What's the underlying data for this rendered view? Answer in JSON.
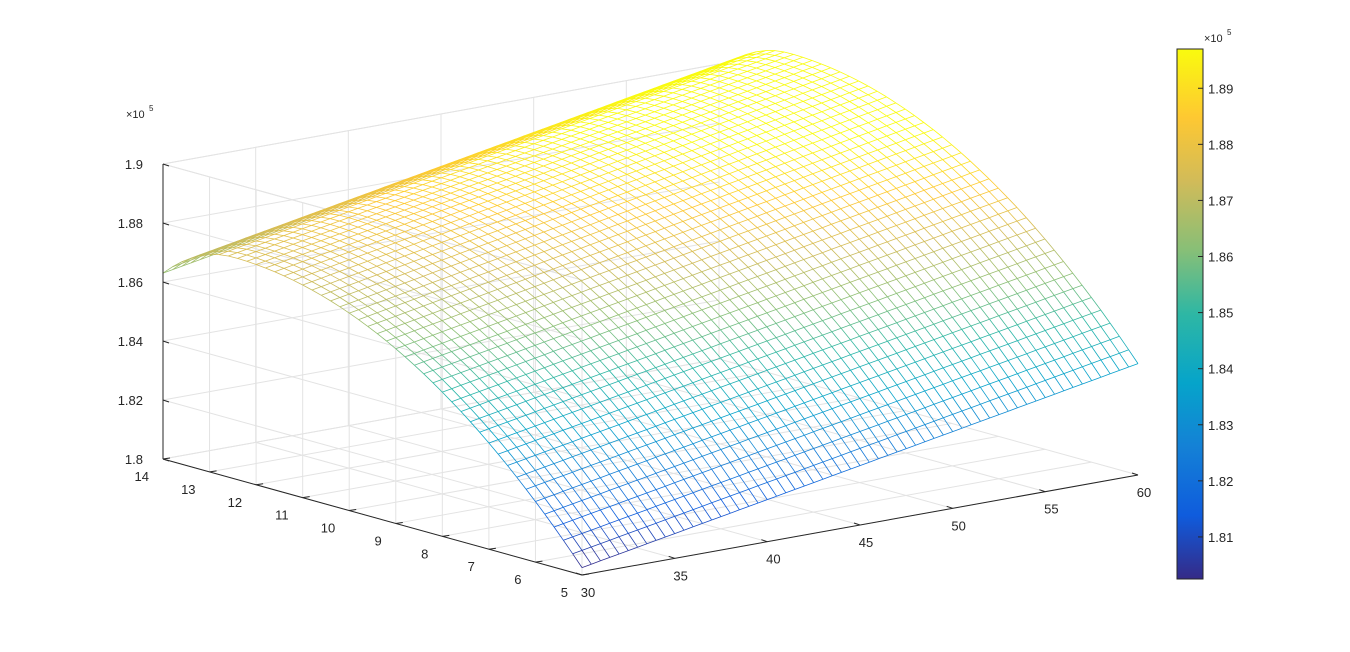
{
  "chart_data": {
    "type": "surface-mesh",
    "title": "",
    "xlabel": "",
    "ylabel": "",
    "zlabel": "",
    "x_range": [
      30,
      60
    ],
    "y_range": [
      5,
      14
    ],
    "z_range": [
      180000,
      190000
    ],
    "x_ticks": [
      "30",
      "35",
      "40",
      "45",
      "50",
      "55",
      "60"
    ],
    "y_ticks": [
      "5",
      "6",
      "7",
      "8",
      "9",
      "10",
      "11",
      "12",
      "13",
      "14"
    ],
    "z_ticks": [
      "1.8",
      "1.82",
      "1.84",
      "1.86",
      "1.88",
      "1.9"
    ],
    "z_exponent_label": "×10",
    "z_exponent_power": "5",
    "colorbar": {
      "ticks": [
        "1.81",
        "1.82",
        "1.83",
        "1.84",
        "1.85",
        "1.86",
        "1.87",
        "1.88",
        "1.89"
      ],
      "tick_values": [
        181000,
        182000,
        183000,
        184000,
        185000,
        186000,
        187000,
        188000,
        189000
      ],
      "range": [
        180250,
        189700
      ],
      "exponent_label": "×10",
      "exponent_power": "5",
      "colormap": "parula"
    },
    "surface": {
      "corner_values": {
        "x30_y5": 180250,
        "x60_y5": 183900,
        "x30_y14": 186300,
        "x60_y14": 189700
      },
      "ridge_y": 12.5,
      "ridge_value_at_x30": 187500,
      "grid_lines_x": 61,
      "grid_lines_y": 46
    },
    "grid": true
  }
}
